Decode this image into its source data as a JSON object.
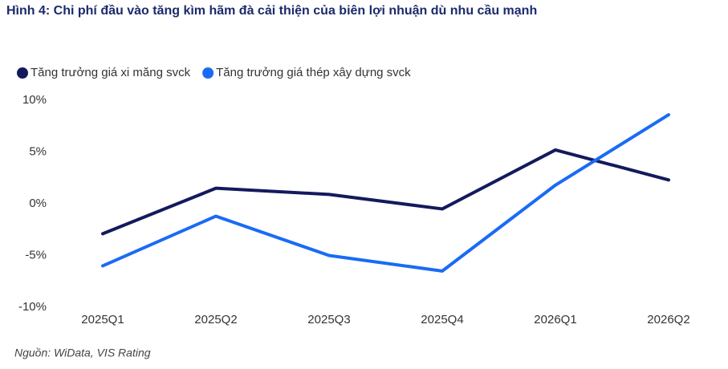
{
  "chart_data": {
    "type": "line",
    "title": "Hình 4: Chi phí đầu vào tăng kìm hãm đà cải thiện của biên lợi nhuận dù nhu cầu mạnh",
    "categories": [
      "2025Q1",
      "2025Q2",
      "2025Q3",
      "2025Q4",
      "2026Q1",
      "2026Q2"
    ],
    "series": [
      {
        "name": "Tăng trưởng giá xi măng svck",
        "color": "#131a5c",
        "values": [
          -2.9,
          1.5,
          0.9,
          -0.5,
          5.2,
          2.3
        ]
      },
      {
        "name": "Tăng trưởng giá thép xây dựng svck",
        "color": "#1a6bf5",
        "values": [
          -6.0,
          -1.2,
          -5.0,
          -6.5,
          1.8,
          8.6
        ]
      }
    ],
    "ylim": [
      -10,
      10
    ],
    "yticks": [
      {
        "value": -10,
        "label": "-10%"
      },
      {
        "value": -5,
        "label": "-5%"
      },
      {
        "value": 0,
        "label": "0%"
      },
      {
        "value": 5,
        "label": "5%"
      },
      {
        "value": 10,
        "label": "10%"
      }
    ],
    "grid": false,
    "legend": "top-left",
    "source": "Nguồn: WiData, VIS Rating"
  }
}
